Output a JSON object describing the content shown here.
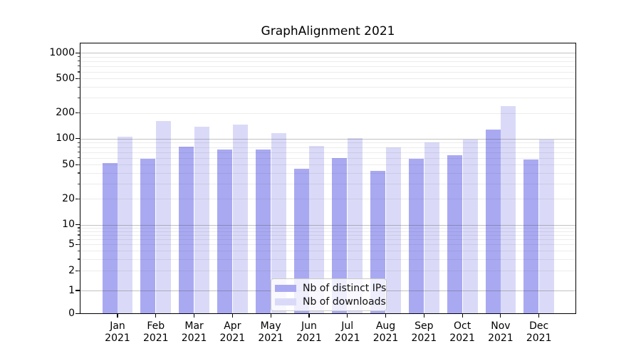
{
  "chart_data": {
    "type": "bar",
    "title": "GraphAlignment 2021",
    "x": {
      "months": [
        "Jan",
        "Feb",
        "Mar",
        "Apr",
        "May",
        "Jun",
        "Jul",
        "Aug",
        "Sep",
        "Oct",
        "Nov",
        "Dec"
      ],
      "year": "2021"
    },
    "series": [
      {
        "name": "Nb of distinct IPs",
        "color": "#a9a9f2",
        "values": [
          52,
          58,
          81,
          75,
          75,
          45,
          60,
          42,
          58,
          64,
          129,
          57
        ]
      },
      {
        "name": "Nb of downloads",
        "color": "#dadaf8",
        "values": [
          106,
          160,
          139,
          146,
          117,
          82,
          102,
          79,
          91,
          98,
          242,
          98
        ]
      }
    ],
    "yscale": "symlog",
    "ylim": [
      0,
      1300
    ],
    "y_ticks": [
      {
        "value": 0,
        "label": "0"
      },
      {
        "value": 1,
        "label": "1"
      },
      {
        "value": 2,
        "label": "2"
      },
      {
        "value": 5,
        "label": "5"
      },
      {
        "value": 10,
        "label": "10"
      },
      {
        "value": 20,
        "label": "20"
      },
      {
        "value": 50,
        "label": "50"
      },
      {
        "value": 100,
        "label": "100"
      },
      {
        "value": 200,
        "label": "200"
      },
      {
        "value": 500,
        "label": "500"
      },
      {
        "value": 1000,
        "label": "1000"
      }
    ],
    "grid": "on",
    "legend_position": "lower center"
  }
}
